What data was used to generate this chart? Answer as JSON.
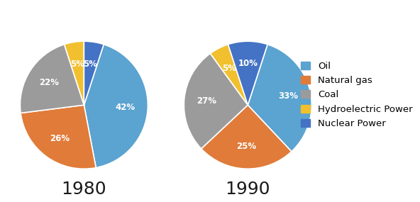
{
  "chart1_title": "1980",
  "chart2_title": "1990",
  "categories": [
    "Oil",
    "Natural gas",
    "Coal",
    "Hydroelectric Power",
    "Nuclear Power"
  ],
  "colors": [
    "#5BA3D0",
    "#E07B39",
    "#9B9B9B",
    "#F2C02E",
    "#4472C4"
  ],
  "values_1980": [
    42,
    26,
    22,
    5,
    5
  ],
  "values_1990": [
    33,
    25,
    27,
    5,
    10
  ],
  "legend_labels": [
    "Oil",
    "Natural gas",
    "Coal",
    "Hydroelectric Power",
    "Nuclear Power"
  ],
  "title_fontsize": 18,
  "label_fontsize": 8.5,
  "legend_fontsize": 9.5,
  "background_color": "#ffffff",
  "startangle_1980": 72,
  "startangle_1990": 72
}
